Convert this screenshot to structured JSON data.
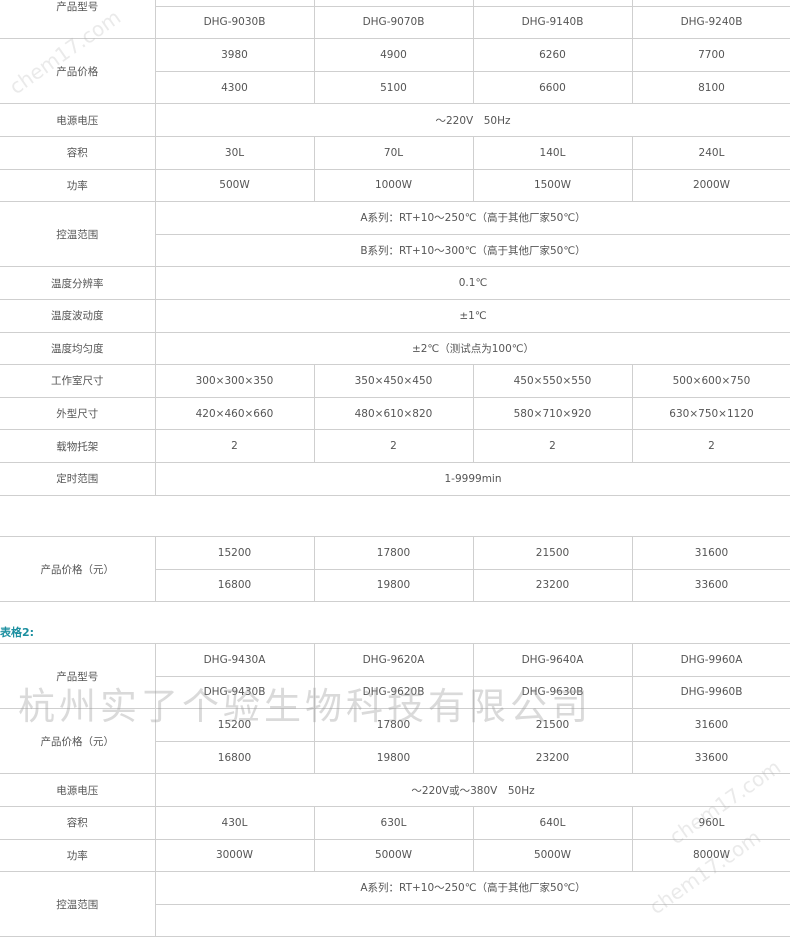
{
  "watermark_small": "chem17.com",
  "watermark_big": "杭州实了个验生物科技有限公司",
  "caption2": "表格2:",
  "table1": [
    {
      "label": "产品型号",
      "rows": [
        [
          "",
          "",
          "",
          ""
        ],
        [
          "DHG-9030B",
          "DHG-9070B",
          "DHG-9140B",
          "DHG-9240B"
        ]
      ]
    },
    {
      "label": "产品价格",
      "rows": [
        [
          "3980",
          "4900",
          "6260",
          "7700"
        ],
        [
          "4300",
          "5100",
          "6600",
          "8100"
        ]
      ]
    },
    {
      "label": "电源电压",
      "rows": [
        [
          "～220V　50Hz"
        ]
      ]
    },
    {
      "label": "容积",
      "rows": [
        [
          "30L",
          "70L",
          "140L",
          "240L"
        ]
      ]
    },
    {
      "label": "功率",
      "rows": [
        [
          "500W",
          "1000W",
          "1500W",
          "2000W"
        ]
      ]
    },
    {
      "label": "控温范围",
      "rows": [
        [
          "A系列：RT+10～250℃（高于其他厂家50℃）"
        ],
        [
          "B系列：RT+10～300℃（高于其他厂家50℃）"
        ]
      ]
    },
    {
      "label": "温度分辨率",
      "rows": [
        [
          "0.1℃"
        ]
      ]
    },
    {
      "label": "温度波动度",
      "rows": [
        [
          "±1℃"
        ]
      ]
    },
    {
      "label": "温度均匀度",
      "rows": [
        [
          "±2℃（测试点为100℃）"
        ]
      ]
    },
    {
      "label": "工作室尺寸",
      "rows": [
        [
          "300×300×350",
          "350×450×450",
          "450×550×550",
          "500×600×750"
        ]
      ]
    },
    {
      "label": "外型尺寸",
      "rows": [
        [
          "420×460×660",
          "480×610×820",
          "580×710×920",
          "630×750×1120"
        ]
      ]
    },
    {
      "label": "载物托架",
      "rows": [
        [
          "2",
          "2",
          "2",
          "2"
        ]
      ]
    },
    {
      "label": "定时范围",
      "rows": [
        [
          "1-9999min"
        ]
      ]
    }
  ],
  "table2": [
    {
      "label": "产品价格（元）",
      "rows": [
        [
          "15200",
          "17800",
          "21500",
          "31600"
        ],
        [
          "16800",
          "19800",
          "23200",
          "33600"
        ]
      ]
    }
  ],
  "table3": [
    {
      "label": "产品型号",
      "rows": [
        [
          "DHG-9430A",
          "DHG-9620A",
          "DHG-9640A",
          "DHG-9960A"
        ],
        [
          "DHG-9430B",
          "DHG-9620B",
          "DHG-9630B",
          "DHG-9960B"
        ]
      ]
    },
    {
      "label": "产品价格（元）",
      "rows": [
        [
          "15200",
          "17800",
          "21500",
          "31600"
        ],
        [
          "16800",
          "19800",
          "23200",
          "33600"
        ]
      ]
    },
    {
      "label": "电源电压",
      "rows": [
        [
          "～220V或～380V　50Hz"
        ]
      ]
    },
    {
      "label": "容积",
      "rows": [
        [
          "430L",
          "630L",
          "640L",
          "960L"
        ]
      ]
    },
    {
      "label": "功率",
      "rows": [
        [
          "3000W",
          "5000W",
          "5000W",
          "8000W"
        ]
      ]
    },
    {
      "label": "控温范围",
      "rows": [
        [
          "A系列：RT+10～250℃（高于其他厂家50℃）"
        ],
        [
          ""
        ]
      ]
    }
  ]
}
